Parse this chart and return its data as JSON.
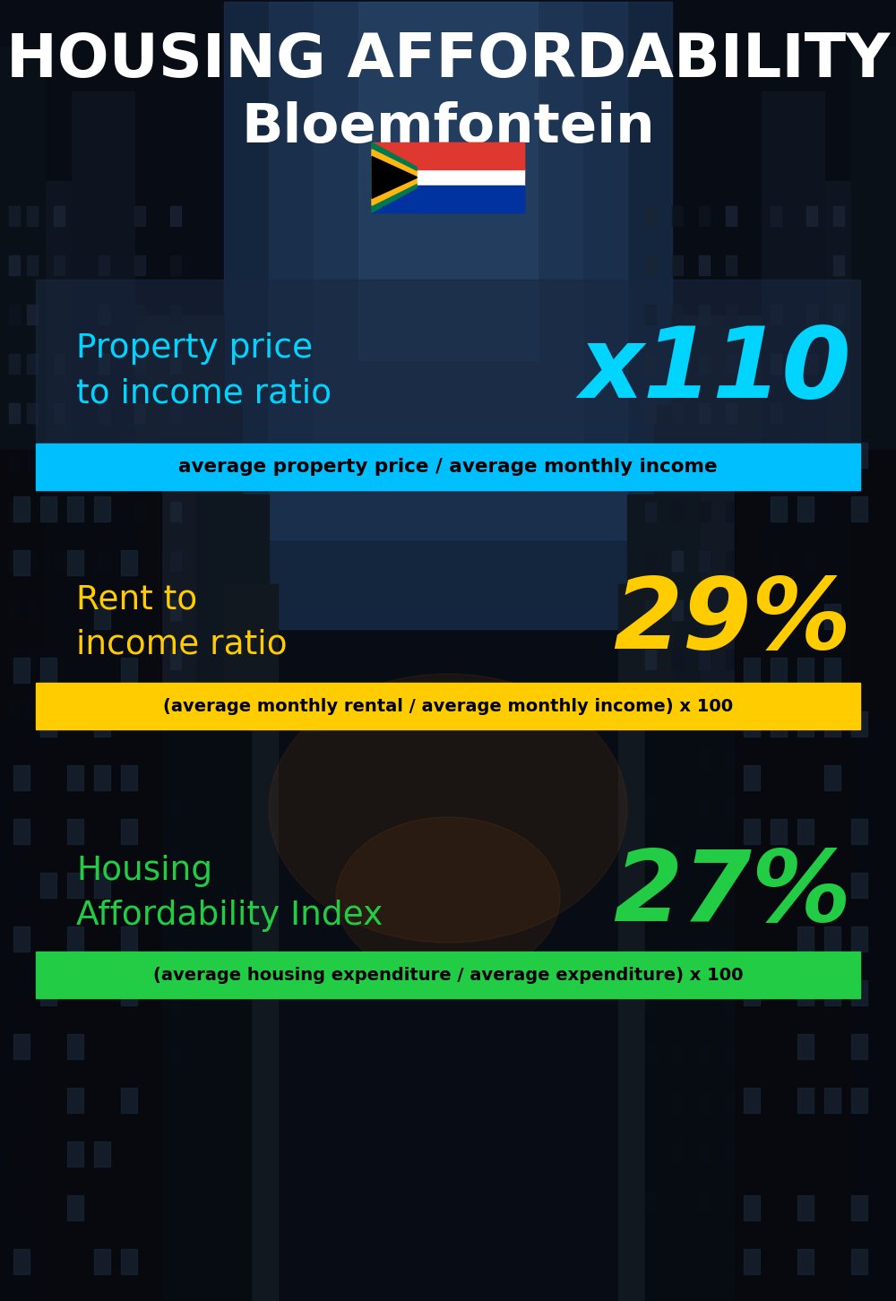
{
  "title_line1": "HOUSING AFFORDABILITY",
  "title_line2": "Bloemfontein",
  "bg_color": "#0a0e1a",
  "section1_label": "Property price\nto income ratio",
  "section1_value": "x110",
  "section1_label_color": "#00d4ff",
  "section1_value_color": "#00d4ff",
  "section1_panel_color": "#2a3a4a",
  "section1_panel_alpha": 0.55,
  "section1_banner_text": "average property price / average monthly income",
  "section1_banner_bg": "#00bfff",
  "section1_banner_text_color": "#000000",
  "section2_label": "Rent to\nincome ratio",
  "section2_value": "29%",
  "section2_label_color": "#ffcc00",
  "section2_value_color": "#ffcc00",
  "section2_banner_text": "(average monthly rental / average monthly income) x 100",
  "section2_banner_bg": "#ffcc00",
  "section2_banner_text_color": "#000000",
  "section3_label": "Housing\nAffordability Index",
  "section3_value": "27%",
  "section3_label_color": "#22cc44",
  "section3_value_color": "#22cc44",
  "section3_banner_text": "(average housing expenditure / average expenditure) x 100",
  "section3_banner_bg": "#22cc44",
  "section3_banner_text_color": "#000000",
  "title_color": "#ffffff",
  "fig_width": 10.0,
  "fig_height": 14.52,
  "dpi": 100
}
